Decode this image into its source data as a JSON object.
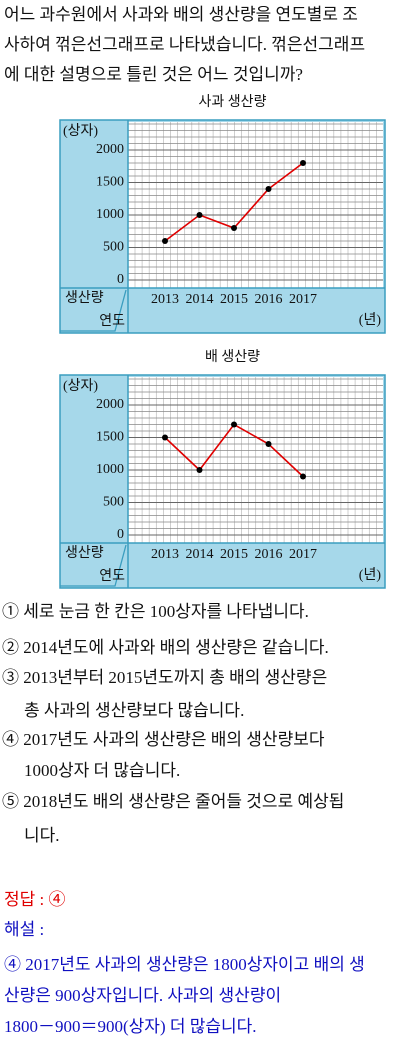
{
  "question": {
    "lines": [
      "어느 과수원에서 사과와 배의 생산량을 연도별로 조",
      "사하여 꺾은선그래프로 나타냈습니다. 꺾은선그래프",
      "에 대한 설명으로 틀린 것은 어느 것입니까?"
    ]
  },
  "chart_data": [
    {
      "type": "line",
      "title": "사과 생산량",
      "y_label": "(상자)",
      "corner_value_label": "생산량",
      "corner_category_label": "연도",
      "x_unit": "(년)",
      "categories": [
        "2013",
        "2014",
        "2015",
        "2016",
        "2017"
      ],
      "values": [
        600,
        1000,
        800,
        1400,
        1800
      ],
      "color": "#e00000",
      "marker_color": "#000000",
      "ylim": [
        0,
        2000
      ],
      "yticks": [
        0,
        500,
        1000,
        1500,
        2000
      ],
      "grid": true,
      "minor_grid_step": 100
    },
    {
      "type": "line",
      "title": "배 생산량",
      "y_label": "(상자)",
      "corner_value_label": "생산량",
      "corner_category_label": "연도",
      "x_unit": "(년)",
      "categories": [
        "2013",
        "2014",
        "2015",
        "2016",
        "2017"
      ],
      "values": [
        1500,
        1000,
        1700,
        1400,
        900
      ],
      "color": "#e00000",
      "marker_color": "#000000",
      "ylim": [
        0,
        2000
      ],
      "yticks": [
        0,
        500,
        1000,
        1500,
        2000
      ],
      "grid": true,
      "minor_grid_step": 100
    }
  ],
  "options": [
    [
      "① 세로 눈금 한 칸은 100상자를 나타냅니다."
    ],
    [
      "② 2014년도에 사과와 배의 생산량은 같습니다."
    ],
    [
      "③ 2013년부터 2015년도까지 총 배의 생산량은",
      "총 사과의 생산량보다 많습니다."
    ],
    [
      "④ 2017년도 사과의 생산량은 배의 생산량보다",
      "1000상자 더 많습니다."
    ],
    [
      "⑤ 2018년도 배의 생산량은 줄어들 것으로 예상됩",
      "니다."
    ]
  ],
  "answer": "정답 : ④",
  "explanation": {
    "heading": "해설 :",
    "lines": [
      "④ 2017년도 사과의 생산량은 1800상자이고 배의 생",
      "산량은 900상자입니다. 사과의 생산량이",
      "1800－900＝900(상자) 더 많습니다."
    ]
  }
}
